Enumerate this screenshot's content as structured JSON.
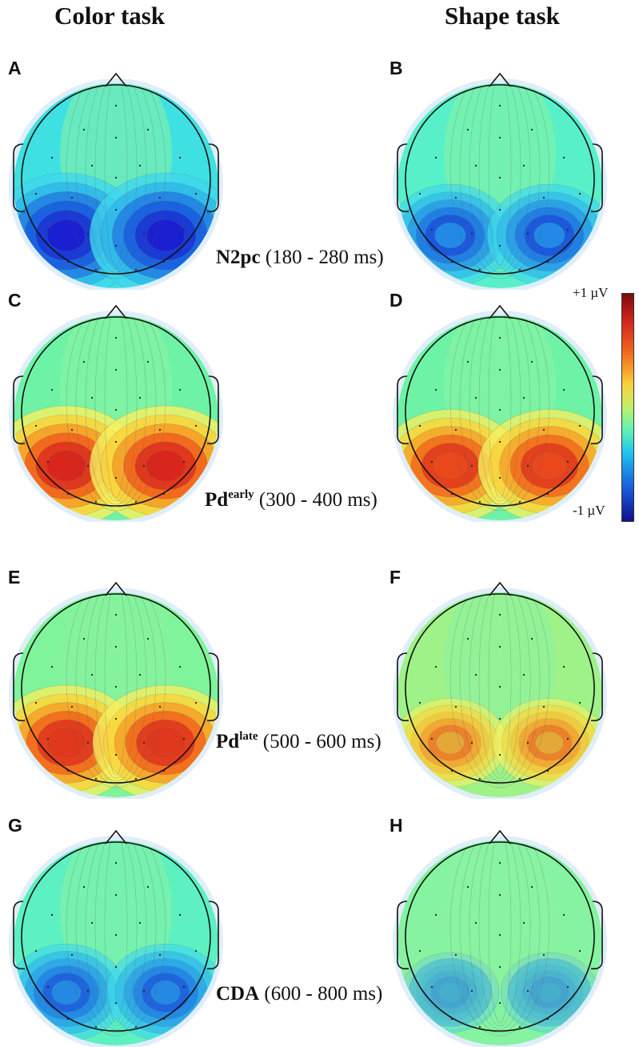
{
  "columns": {
    "left": "Color task",
    "right": "Shape task"
  },
  "panels": [
    {
      "letter": "A",
      "column": "left",
      "row": 0,
      "posFill": "#4ff2c8",
      "negFill": "#1a1fd0",
      "pos": 0.0,
      "neg": 1.0,
      "bgFill": "#3fe0e2"
    },
    {
      "letter": "B",
      "column": "right",
      "row": 0,
      "posFill": "#6ef3a6",
      "negFill": "#2bb2ee",
      "pos": 0.0,
      "neg": 0.55,
      "bgFill": "#57f0c8"
    },
    {
      "letter": "C",
      "column": "left",
      "row": 1,
      "posFill": "#d9261d",
      "negFill": "#4ff2c8",
      "pos": 1.0,
      "neg": 0.0,
      "bgFill": "#6ef3a6"
    },
    {
      "letter": "D",
      "column": "right",
      "row": 1,
      "posFill": "#ea4a1d",
      "negFill": "#4ff2c8",
      "pos": 0.85,
      "neg": 0.0,
      "bgFill": "#6ef3a6"
    },
    {
      "letter": "E",
      "column": "left",
      "row": 2,
      "posFill": "#e0381d",
      "negFill": "#4ff2c8",
      "pos": 0.9,
      "neg": 0.0,
      "bgFill": "#7ff49a"
    },
    {
      "letter": "F",
      "column": "right",
      "row": 2,
      "posFill": "#d6f04e",
      "negFill": "#6ef3a6",
      "pos": 0.35,
      "neg": 0.0,
      "bgFill": "#9ef288"
    },
    {
      "letter": "G",
      "column": "left",
      "row": 3,
      "posFill": "#6ef3a6",
      "negFill": "#2fb6ea",
      "pos": 0.0,
      "neg": 0.45,
      "bgFill": "#5df0c0"
    },
    {
      "letter": "H",
      "column": "right",
      "row": 3,
      "posFill": "#8ff39b",
      "negFill": "#5cf0c0",
      "pos": 0.1,
      "neg": 0.1,
      "bgFill": "#86f3a0"
    }
  ],
  "components": [
    {
      "name": "N2pc",
      "sup": "",
      "window": "(180 - 280 ms)"
    },
    {
      "name": "Pd",
      "sup": "early",
      "window": "(300 - 400 ms)"
    },
    {
      "name": "Pd",
      "sup": "late",
      "window": "(500 - 600 ms)"
    },
    {
      "name": "CDA",
      "sup": "",
      "window": "(600 - 800 ms)"
    }
  ],
  "colorbar": {
    "max_label": "+1 µV",
    "min_label": "-1 µV",
    "max": 1,
    "min": -1
  }
}
